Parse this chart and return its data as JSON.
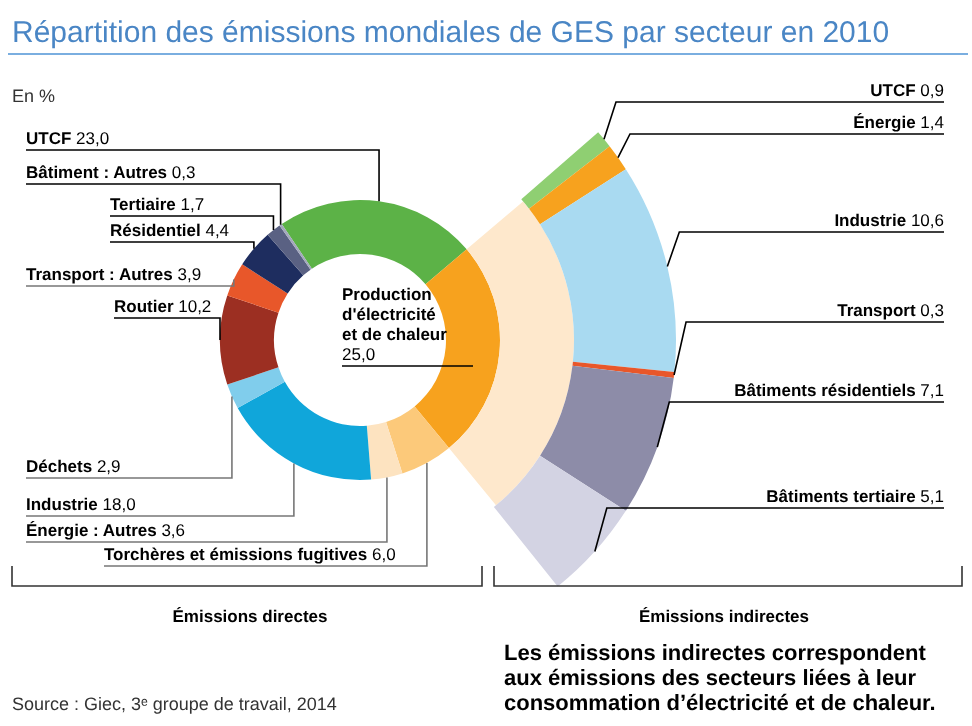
{
  "chart_data": [
    {
      "type": "donut",
      "title": "Répartition des émissions mondiales de GES par secteur en 2010",
      "subtitle": "En %",
      "xlabel": "Émissions directes",
      "categories": [
        "UTCF",
        "Production d'électricité et de chaleur",
        "Torchères et émissions fugitives",
        "Énergie : Autres",
        "Industrie",
        "Déchets",
        "Routier",
        "Transport : Autres",
        "Résidentiel",
        "Tertiaire",
        "Bâtiment : Autres"
      ],
      "values": [
        23.0,
        25.0,
        6.0,
        3.6,
        18.0,
        2.9,
        10.2,
        3.9,
        4.4,
        1.7,
        0.3
      ],
      "value_labels": [
        "23,0",
        "25,0",
        "6,0",
        "3,6",
        "18,0",
        "2,9",
        "10,2",
        "3,9",
        "4,4",
        "1,7",
        "0,3"
      ],
      "colors": [
        "#5cb247",
        "#f7a21e",
        "#fcc97a",
        "#fde3c0",
        "#10a6da",
        "#80cdec",
        "#9c2f22",
        "#e8572a",
        "#1e2d5f",
        "#5a6183",
        "#a3a8bd"
      ],
      "annotations": [
        "Source : Giec, 3ᵉ groupe de travail, 2014"
      ]
    },
    {
      "type": "donut",
      "xlabel": "Émissions indirectes",
      "categories": [
        "UTCF",
        "Énergie",
        "Industrie",
        "Transport",
        "Bâtiments résidentiels",
        "Bâtiments tertiaire"
      ],
      "values": [
        0.9,
        1.4,
        10.6,
        0.3,
        7.1,
        5.1
      ],
      "value_labels": [
        "0,9",
        "1,4",
        "10,6",
        "0,3",
        "7,1",
        "5,1"
      ],
      "colors": [
        "#8fcf72",
        "#f7a21e",
        "#a9daf1",
        "#e8572a",
        "#8d8ca8",
        "#d3d3e3"
      ],
      "annotations": [
        "Les émissions indirectes correspondent aux émissions des secteurs liées à leur consommation d’électricité et de chaleur."
      ]
    }
  ]
}
